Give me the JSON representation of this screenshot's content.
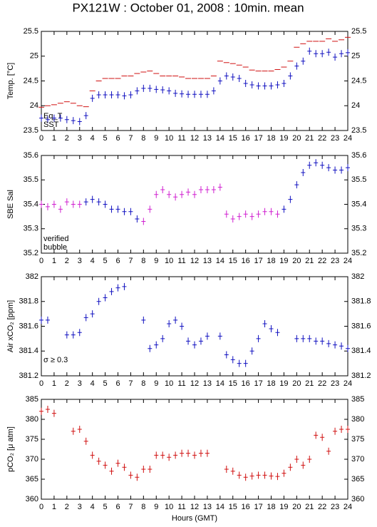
{
  "chart_data": [
    {
      "type": "scatter",
      "title": "PX121W : October 01, 2008 : 10min. mean",
      "y_label": "Temp. [°C]",
      "x": [
        0,
        0.5,
        1,
        1.5,
        2,
        2.5,
        3,
        3.5,
        4,
        4.5,
        5,
        5.5,
        6,
        6.5,
        7,
        7.5,
        8,
        8.5,
        9,
        9.5,
        10,
        10.5,
        11,
        11.5,
        12,
        12.5,
        13,
        13.5,
        14,
        14.5,
        15,
        15.5,
        16,
        16.5,
        17,
        17.5,
        18,
        18.5,
        19,
        19.5,
        20,
        20.5,
        21,
        21.5,
        22,
        22.5,
        23,
        23.5,
        24
      ],
      "xlim": [
        0,
        24
      ],
      "xticks": [
        0,
        1,
        2,
        3,
        4,
        5,
        6,
        7,
        8,
        9,
        10,
        11,
        12,
        13,
        14,
        15,
        16,
        17,
        18,
        19,
        20,
        21,
        22,
        23,
        24
      ],
      "ylim": [
        23.5,
        25.5
      ],
      "yticks": [
        23.5,
        24,
        24.5,
        25,
        25.5
      ],
      "series": [
        {
          "name": "Eq_T",
          "color": "#d01010",
          "marker": "dash",
          "values": [
            23.97,
            24.0,
            24.02,
            24.05,
            24.08,
            24.05,
            24.0,
            23.98,
            24.3,
            24.5,
            24.55,
            24.55,
            24.55,
            24.6,
            24.6,
            24.65,
            24.68,
            24.7,
            24.65,
            24.6,
            24.6,
            24.6,
            24.58,
            24.55,
            24.55,
            24.55,
            24.55,
            24.6,
            24.9,
            24.87,
            24.85,
            24.82,
            24.78,
            24.72,
            24.7,
            24.7,
            24.7,
            24.73,
            24.78,
            24.9,
            25.18,
            25.25,
            25.3,
            25.3,
            25.3,
            25.35,
            25.3,
            25.33,
            25.38
          ]
        },
        {
          "name": "SST",
          "color": "#1010c0",
          "marker": "plus",
          "values": [
            23.75,
            23.72,
            23.75,
            23.75,
            23.72,
            23.7,
            23.68,
            23.8,
            24.15,
            24.22,
            24.22,
            24.22,
            24.22,
            24.2,
            24.22,
            24.3,
            24.35,
            24.35,
            24.33,
            24.32,
            24.3,
            24.25,
            24.24,
            24.23,
            24.23,
            24.23,
            24.23,
            24.3,
            24.5,
            24.6,
            24.58,
            24.55,
            24.45,
            24.42,
            24.4,
            24.4,
            24.4,
            24.42,
            24.45,
            24.6,
            24.8,
            24.9,
            25.1,
            25.05,
            25.05,
            25.08,
            24.98,
            25.05,
            25.07
          ]
        }
      ]
    },
    {
      "type": "scatter",
      "y_label": "SBE Sal",
      "x": [
        0,
        0.5,
        1,
        1.5,
        2,
        2.5,
        3,
        3.5,
        4,
        4.5,
        5,
        5.5,
        6,
        6.5,
        7,
        7.5,
        8,
        8.5,
        9,
        9.5,
        10,
        10.5,
        11,
        11.5,
        12,
        12.5,
        13,
        13.5,
        14,
        14.5,
        15,
        15.5,
        16,
        16.5,
        17,
        17.5,
        18,
        18.5,
        19,
        19.5,
        20,
        20.5,
        21,
        21.5,
        22,
        22.5,
        23,
        23.5,
        24
      ],
      "xlim": [
        0,
        24
      ],
      "xticks": [
        0,
        1,
        2,
        3,
        4,
        5,
        6,
        7,
        8,
        9,
        10,
        11,
        12,
        13,
        14,
        15,
        16,
        17,
        18,
        19,
        20,
        21,
        22,
        23,
        24
      ],
      "ylim": [
        35.2,
        35.6
      ],
      "yticks": [
        35.2,
        35.3,
        35.4,
        35.5,
        35.6
      ],
      "series": [
        {
          "name": "verified",
          "color": "#1010c0",
          "marker": "plus",
          "values": [
            null,
            null,
            null,
            null,
            null,
            null,
            null,
            35.41,
            35.42,
            35.41,
            35.4,
            35.38,
            35.38,
            35.37,
            35.37,
            35.34,
            null,
            null,
            null,
            null,
            null,
            null,
            null,
            null,
            null,
            null,
            null,
            null,
            null,
            null,
            null,
            null,
            null,
            null,
            null,
            null,
            null,
            null,
            35.38,
            35.42,
            35.48,
            35.53,
            35.56,
            35.57,
            35.56,
            35.55,
            35.54,
            35.54,
            35.55
          ]
        },
        {
          "name": "bubble",
          "color": "#d020d0",
          "marker": "plus",
          "values": [
            35.4,
            35.39,
            35.4,
            35.38,
            35.41,
            35.4,
            35.4,
            null,
            null,
            null,
            null,
            null,
            null,
            null,
            null,
            null,
            35.33,
            35.38,
            35.44,
            35.46,
            35.44,
            35.43,
            35.44,
            35.45,
            35.44,
            35.46,
            35.46,
            35.46,
            35.47,
            35.36,
            35.34,
            35.35,
            35.36,
            35.35,
            35.36,
            35.37,
            35.37,
            35.36,
            null,
            null,
            null,
            null,
            null,
            null,
            null,
            null,
            null,
            null,
            null
          ]
        }
      ]
    },
    {
      "type": "scatter",
      "y_label": "Air xCO₂ [ppm]",
      "annotation": "σ ≥ 0.3",
      "annotation_color": "#d020d0",
      "x": [
        0,
        0.5,
        1,
        1.5,
        2,
        2.5,
        3,
        3.5,
        4,
        4.5,
        5,
        5.5,
        6,
        6.5,
        7,
        7.5,
        8,
        8.5,
        9,
        9.5,
        10,
        10.5,
        11,
        11.5,
        12,
        12.5,
        13,
        13.5,
        14,
        14.5,
        15,
        15.5,
        16,
        16.5,
        17,
        17.5,
        18,
        18.5,
        19,
        19.5,
        20,
        20.5,
        21,
        21.5,
        22,
        22.5,
        23,
        23.5,
        24
      ],
      "xlim": [
        0,
        24
      ],
      "xticks": [
        0,
        1,
        2,
        3,
        4,
        5,
        6,
        7,
        8,
        9,
        10,
        11,
        12,
        13,
        14,
        15,
        16,
        17,
        18,
        19,
        20,
        21,
        22,
        23,
        24
      ],
      "ylim": [
        381.2,
        382
      ],
      "yticks": [
        381.2,
        381.4,
        381.6,
        381.8,
        382
      ],
      "series": [
        {
          "color": "#1010c0",
          "marker": "plus",
          "values": [
            381.65,
            381.65,
            null,
            null,
            381.53,
            381.53,
            381.55,
            381.67,
            381.7,
            381.8,
            381.83,
            381.88,
            381.91,
            381.92,
            null,
            null,
            381.65,
            381.42,
            381.45,
            381.5,
            381.62,
            381.65,
            381.6,
            381.48,
            381.45,
            381.48,
            381.52,
            null,
            381.52,
            381.37,
            381.33,
            381.3,
            381.3,
            381.4,
            381.5,
            381.62,
            381.58,
            381.55,
            null,
            null,
            381.5,
            381.5,
            381.5,
            381.48,
            381.48,
            381.46,
            381.45,
            381.44,
            381.42
          ]
        }
      ]
    },
    {
      "type": "scatter",
      "y_label": "pCO₂ [μ atm]",
      "x_label": "Hours (GMT)",
      "x": [
        0,
        0.5,
        1,
        1.5,
        2,
        2.5,
        3,
        3.5,
        4,
        4.5,
        5,
        5.5,
        6,
        6.5,
        7,
        7.5,
        8,
        8.5,
        9,
        9.5,
        10,
        10.5,
        11,
        11.5,
        12,
        12.5,
        13,
        13.5,
        14,
        14.5,
        15,
        15.5,
        16,
        16.5,
        17,
        17.5,
        18,
        18.5,
        19,
        19.5,
        20,
        20.5,
        21,
        21.5,
        22,
        22.5,
        23,
        23.5,
        24
      ],
      "xlim": [
        0,
        24
      ],
      "xticks": [
        0,
        1,
        2,
        3,
        4,
        5,
        6,
        7,
        8,
        9,
        10,
        11,
        12,
        13,
        14,
        15,
        16,
        17,
        18,
        19,
        20,
        21,
        22,
        23,
        24
      ],
      "ylim": [
        360,
        385
      ],
      "yticks": [
        360,
        365,
        370,
        375,
        380,
        385
      ],
      "series": [
        {
          "color": "#d01010",
          "marker": "plus",
          "values": [
            382,
            382.5,
            381.5,
            null,
            null,
            377,
            377.5,
            374.5,
            371,
            369.5,
            368.5,
            367,
            369,
            368,
            366,
            365.5,
            367.5,
            367.5,
            371,
            371,
            370.5,
            371,
            371.5,
            371.5,
            371,
            371.5,
            371.5,
            null,
            null,
            367.5,
            367,
            366,
            365.5,
            365.8,
            366,
            366,
            365.8,
            365.7,
            366.5,
            368,
            370,
            368.5,
            370,
            376,
            375.5,
            372,
            377,
            377.5,
            377.5
          ]
        }
      ]
    }
  ]
}
